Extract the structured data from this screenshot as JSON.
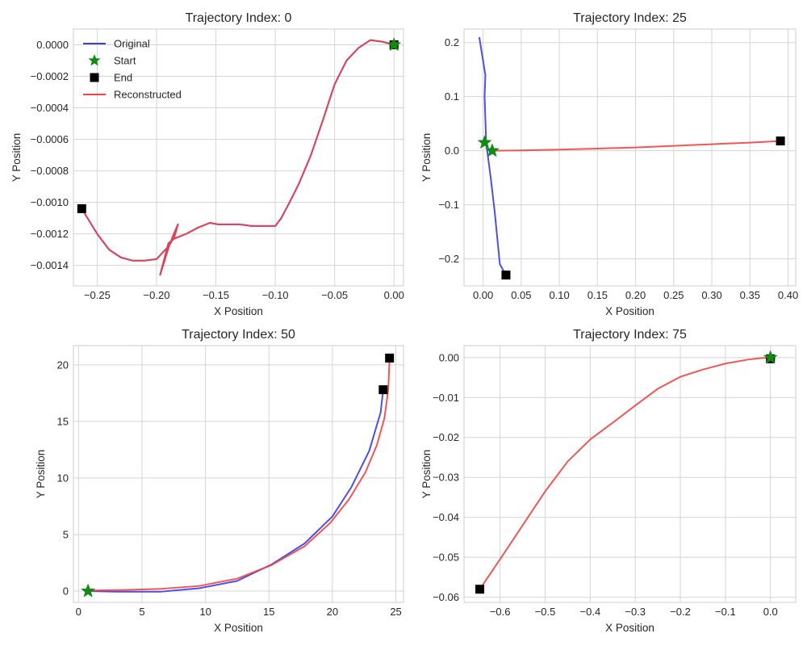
{
  "figure": {
    "colors": {
      "original": "#3b3be6",
      "reconstructed": "#ef4444",
      "start": "#138a13",
      "end": "#000000",
      "grid": "#d5d5d5",
      "frame": "#cccccc"
    },
    "legend": {
      "original": "Original",
      "start": "Start",
      "end": "End",
      "reconstructed": "Reconstructed"
    }
  },
  "chart_data": [
    {
      "type": "line",
      "title": "Trajectory Index: 0",
      "xlabel": "X Position",
      "ylabel": "Y Position",
      "xlim": [
        -0.27,
        0.008
      ],
      "ylim": [
        -0.00153,
        0.0001
      ],
      "xticks": [
        -0.25,
        -0.2,
        -0.15,
        -0.1,
        -0.05,
        0.0
      ],
      "xtick_labels": [
        "−0.25",
        "−0.20",
        "−0.15",
        "−0.10",
        "−0.05",
        "0.00"
      ],
      "yticks": [
        0.0,
        -0.0002,
        -0.0004,
        -0.0006,
        -0.0008,
        -0.001,
        -0.0012,
        -0.0014
      ],
      "ytick_labels": [
        "0.0000",
        "−0.0002",
        "−0.0004",
        "−0.0006",
        "−0.0008",
        "−0.0010",
        "−0.0012",
        "−0.0014"
      ],
      "grid": true,
      "legend_position": "top-left",
      "series": [
        {
          "name": "Original",
          "role": "original",
          "x": [
            -0.263,
            -0.25,
            -0.24,
            -0.23,
            -0.22,
            -0.21,
            -0.2,
            -0.19,
            -0.185,
            -0.182,
            -0.186,
            -0.19,
            -0.197,
            -0.19,
            -0.185,
            -0.175,
            -0.165,
            -0.155,
            -0.148,
            -0.14,
            -0.13,
            -0.12,
            -0.11,
            -0.1,
            -0.095,
            -0.088,
            -0.08,
            -0.07,
            -0.06,
            -0.05,
            -0.04,
            -0.03,
            -0.02,
            -0.01,
            0.0
          ],
          "y": [
            -0.00104,
            -0.0012,
            -0.0013,
            -0.00135,
            -0.00137,
            -0.00137,
            -0.00136,
            -0.00128,
            -0.00122,
            -0.00114,
            -0.00121,
            -0.00129,
            -0.00146,
            -0.00126,
            -0.00123,
            -0.0012,
            -0.00116,
            -0.00113,
            -0.00114,
            -0.00114,
            -0.00114,
            -0.00115,
            -0.00115,
            -0.00115,
            -0.0011,
            -0.001,
            -0.00088,
            -0.0007,
            -0.00048,
            -0.00025,
            -0.0001,
            -2e-05,
            3e-05,
            2e-05,
            0.0
          ]
        },
        {
          "name": "Reconstructed",
          "role": "reconstructed",
          "x": [
            -0.263,
            -0.25,
            -0.24,
            -0.23,
            -0.22,
            -0.21,
            -0.2,
            -0.19,
            -0.185,
            -0.182,
            -0.186,
            -0.19,
            -0.197,
            -0.19,
            -0.185,
            -0.175,
            -0.165,
            -0.155,
            -0.148,
            -0.14,
            -0.13,
            -0.12,
            -0.11,
            -0.1,
            -0.095,
            -0.088,
            -0.08,
            -0.07,
            -0.06,
            -0.05,
            -0.04,
            -0.03,
            -0.02,
            -0.01,
            0.0
          ],
          "y": [
            -0.00104,
            -0.0012,
            -0.0013,
            -0.00135,
            -0.00137,
            -0.00137,
            -0.00136,
            -0.00128,
            -0.00122,
            -0.00114,
            -0.00121,
            -0.00129,
            -0.00146,
            -0.00126,
            -0.00123,
            -0.0012,
            -0.00116,
            -0.00113,
            -0.00114,
            -0.00114,
            -0.00114,
            -0.00115,
            -0.00115,
            -0.00115,
            -0.0011,
            -0.001,
            -0.00088,
            -0.0007,
            -0.00048,
            -0.00025,
            -0.0001,
            -2e-05,
            3e-05,
            2e-05,
            0.0
          ]
        }
      ],
      "start": [
        0.0,
        0.0
      ],
      "end": [
        -0.263,
        -0.00104
      ],
      "end_extra": [
        0.0,
        0.0
      ],
      "show_legend": true
    },
    {
      "type": "line",
      "title": "Trajectory Index: 25",
      "xlabel": "X Position",
      "ylabel": "Y Position",
      "xlim": [
        -0.025,
        0.41
      ],
      "ylim": [
        -0.25,
        0.225
      ],
      "xticks": [
        0.0,
        0.05,
        0.1,
        0.15,
        0.2,
        0.25,
        0.3,
        0.35,
        0.4
      ],
      "xtick_labels": [
        "0.00",
        "0.05",
        "0.10",
        "0.15",
        "0.20",
        "0.25",
        "0.30",
        "0.35",
        "0.40"
      ],
      "yticks": [
        0.2,
        0.1,
        0.0,
        -0.1,
        -0.2
      ],
      "ytick_labels": [
        "0.2",
        "0.1",
        "0.0",
        "−0.1",
        "−0.2"
      ],
      "grid": true,
      "series": [
        {
          "name": "Original",
          "role": "original",
          "x": [
            -0.005,
            0.003,
            0.002,
            0.004,
            0.01,
            0.015,
            0.022,
            0.03
          ],
          "y": [
            0.21,
            0.14,
            0.1,
            0.015,
            -0.05,
            -0.11,
            -0.21,
            -0.23
          ]
        },
        {
          "name": "Reconstructed",
          "role": "reconstructed",
          "x": [
            0.012,
            0.05,
            0.1,
            0.15,
            0.2,
            0.25,
            0.3,
            0.35,
            0.39
          ],
          "y": [
            0.0,
            0.0005,
            0.002,
            0.004,
            0.006,
            0.009,
            0.012,
            0.015,
            0.018
          ]
        }
      ],
      "start": [
        0.002,
        0.015
      ],
      "start_extra": [
        0.012,
        0.0
      ],
      "end": [
        0.03,
        -0.23
      ],
      "end_extra": [
        0.39,
        0.018
      ],
      "show_legend": false
    },
    {
      "type": "line",
      "title": "Trajectory Index: 50",
      "xlabel": "X Position",
      "ylabel": "Y Position",
      "xlim": [
        -0.4,
        25.6
      ],
      "ylim": [
        -1.0,
        21.7
      ],
      "xticks": [
        0,
        5,
        10,
        15,
        20,
        25
      ],
      "xtick_labels": [
        "0",
        "5",
        "10",
        "15",
        "20",
        "25"
      ],
      "yticks": [
        0,
        5,
        10,
        15,
        20
      ],
      "ytick_labels": [
        "0",
        "5",
        "10",
        "15",
        "20"
      ],
      "grid": true,
      "series": [
        {
          "name": "Original",
          "role": "original",
          "x": [
            0.8,
            3.0,
            6.5,
            9.5,
            12.5,
            15.2,
            17.8,
            20.0,
            21.5,
            22.9,
            23.8,
            24.0
          ],
          "y": [
            0.0,
            -0.05,
            -0.05,
            0.25,
            0.9,
            2.35,
            4.2,
            6.6,
            9.2,
            12.4,
            15.8,
            17.8
          ]
        },
        {
          "name": "Reconstructed",
          "role": "reconstructed",
          "x": [
            0.8,
            3.5,
            6.5,
            9.5,
            12.5,
            15.2,
            17.8,
            19.8,
            21.3,
            22.6,
            23.5,
            24.1,
            24.4,
            24.5
          ],
          "y": [
            0.05,
            0.1,
            0.2,
            0.45,
            1.1,
            2.3,
            3.95,
            6.0,
            8.1,
            10.5,
            12.9,
            15.3,
            17.8,
            20.6
          ]
        }
      ],
      "start": [
        0.75,
        0.0
      ],
      "end": [
        24.0,
        17.8
      ],
      "end_extra": [
        24.5,
        20.6
      ],
      "show_legend": false
    },
    {
      "type": "line",
      "title": "Trajectory Index: 75",
      "xlabel": "X Position",
      "ylabel": "Y Position",
      "xlim": [
        -0.68,
        0.056
      ],
      "ylim": [
        -0.0613,
        0.003
      ],
      "xticks": [
        -0.6,
        -0.5,
        -0.4,
        -0.3,
        -0.2,
        -0.1,
        0.0
      ],
      "xtick_labels": [
        "−0.6",
        "−0.5",
        "−0.4",
        "−0.3",
        "−0.2",
        "−0.1",
        "0.0"
      ],
      "yticks": [
        0.0,
        -0.01,
        -0.02,
        -0.03,
        -0.04,
        -0.05,
        -0.06
      ],
      "ytick_labels": [
        "0.00",
        "−0.01",
        "−0.02",
        "−0.03",
        "−0.04",
        "−0.05",
        "−0.06"
      ],
      "grid": true,
      "series": [
        {
          "name": "Original",
          "role": "original",
          "x": [
            -0.005,
            0.0,
            0.005,
            0.01
          ],
          "y": [
            0.0,
            0.0005,
            0.0002,
            -0.0003
          ]
        },
        {
          "name": "Reconstructed",
          "role": "reconstructed",
          "x": [
            -0.645,
            -0.6,
            -0.55,
            -0.5,
            -0.45,
            -0.4,
            -0.35,
            -0.3,
            -0.25,
            -0.2,
            -0.15,
            -0.1,
            -0.05,
            -0.02,
            0.0,
            0.01
          ],
          "y": [
            -0.058,
            -0.0505,
            -0.042,
            -0.0335,
            -0.026,
            -0.0205,
            -0.0163,
            -0.012,
            -0.0078,
            -0.0048,
            -0.003,
            -0.0015,
            -0.0005,
            -0.0001,
            0.0,
            -0.0001
          ]
        }
      ],
      "start": [
        0.0,
        0.0
      ],
      "end": [
        0.0,
        -0.0003
      ],
      "end_extra": [
        -0.645,
        -0.058
      ],
      "show_legend": false
    }
  ]
}
